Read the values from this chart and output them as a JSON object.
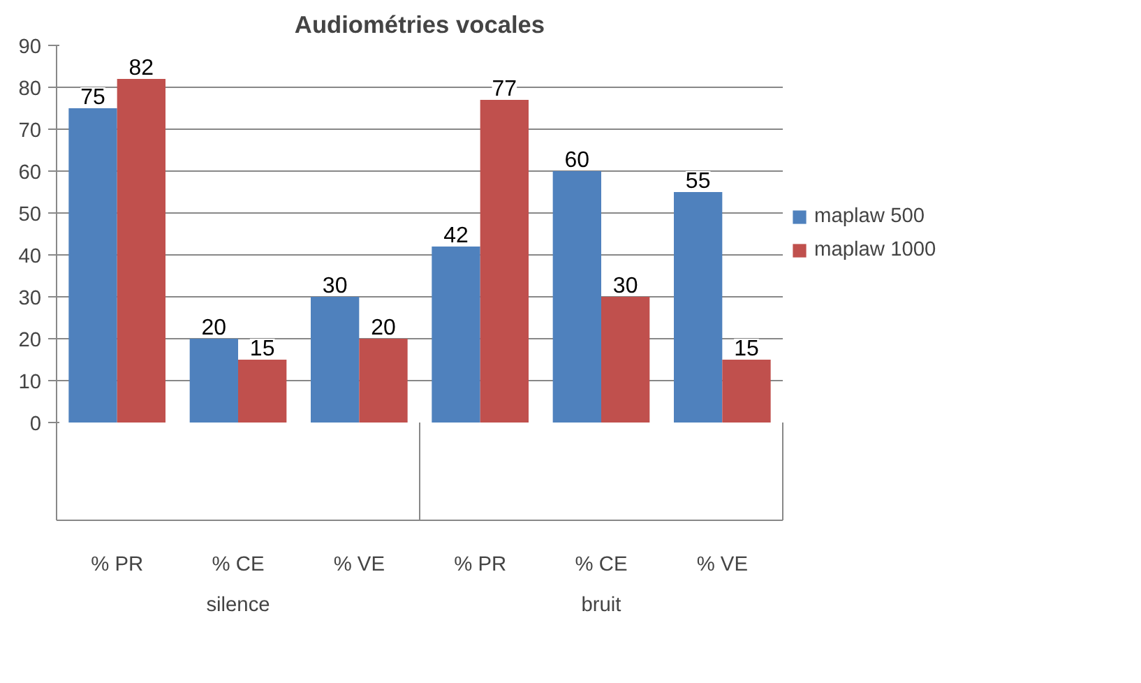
{
  "chart_data": {
    "type": "bar",
    "title": "Audiométries vocales",
    "categories": [
      "% PR",
      "% CE",
      "% VE",
      "% PR",
      "% CE",
      "% VE"
    ],
    "annotations": [
      "silence",
      "bruit"
    ],
    "series": [
      {
        "name": "maplaw 500",
        "color": "#4f81bd",
        "values": [
          75,
          20,
          30,
          42,
          60,
          55
        ]
      },
      {
        "name": "maplaw 1000",
        "color": "#c0504d",
        "values": [
          82,
          15,
          20,
          77,
          30,
          15
        ]
      }
    ],
    "ylim": [
      0,
      90
    ],
    "yticks": [
      0,
      10,
      20,
      30,
      40,
      50,
      60,
      70,
      80,
      90
    ],
    "grid": "y",
    "legend": "right",
    "data_labels": true
  }
}
